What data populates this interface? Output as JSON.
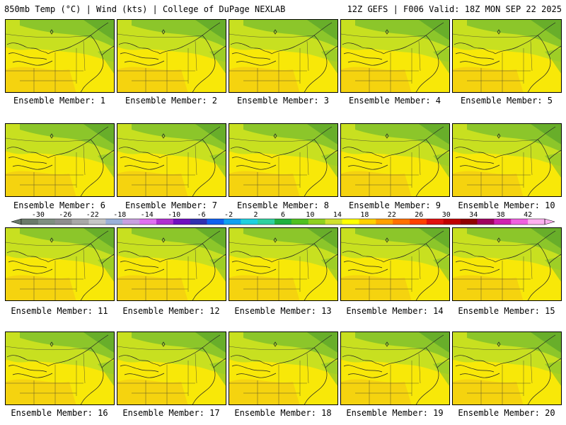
{
  "header": {
    "left": "850mb Temp (°C) | Wind (kts) | College of DuPage NEXLAB",
    "right": "12Z GEFS | F006 Valid: 18Z MON SEP 22 2025"
  },
  "members": [
    "Ensemble Member: 1",
    "Ensemble Member: 2",
    "Ensemble Member: 3",
    "Ensemble Member: 4",
    "Ensemble Member: 5",
    "Ensemble Member: 6",
    "Ensemble Member: 7",
    "Ensemble Member: 8",
    "Ensemble Member: 9",
    "Ensemble Member: 10",
    "Ensemble Member: 11",
    "Ensemble Member: 12",
    "Ensemble Member: 13",
    "Ensemble Member: 14",
    "Ensemble Member: 15",
    "Ensemble Member: 16",
    "Ensemble Member: 17",
    "Ensemble Member: 18",
    "Ensemble Member: 19",
    "Ensemble Member: 20"
  ],
  "colorbar": {
    "ticks": [
      "-30",
      "-26",
      "-22",
      "-18",
      "-14",
      "-10",
      "-6",
      "-2",
      "2",
      "6",
      "10",
      "14",
      "18",
      "22",
      "26",
      "30",
      "34",
      "38",
      "42"
    ],
    "colors": [
      "#6a7a6a",
      "#7f8f80",
      "#8e8e8e",
      "#a8a8a8",
      "#c6c6c6",
      "#9ab0d8",
      "#c8a0e0",
      "#e070f0",
      "#b030d0",
      "#7010c0",
      "#3030b0",
      "#1060f0",
      "#10a0f0",
      "#20d0e0",
      "#30d0a0",
      "#20b040",
      "#50c020",
      "#90d020",
      "#d0e030",
      "#ffff00",
      "#ffd000",
      "#ffa000",
      "#ff7000",
      "#ff4000",
      "#e01010",
      "#c00000",
      "#900000",
      "#a00060",
      "#d020b0",
      "#f060e0",
      "#ffb0f0"
    ]
  },
  "map_colors": {
    "warm": "#f5cf10",
    "yellow": "#f8e808",
    "lime": "#c8e020",
    "green": "#8cc62a",
    "darkgreen": "#5fa82a"
  }
}
